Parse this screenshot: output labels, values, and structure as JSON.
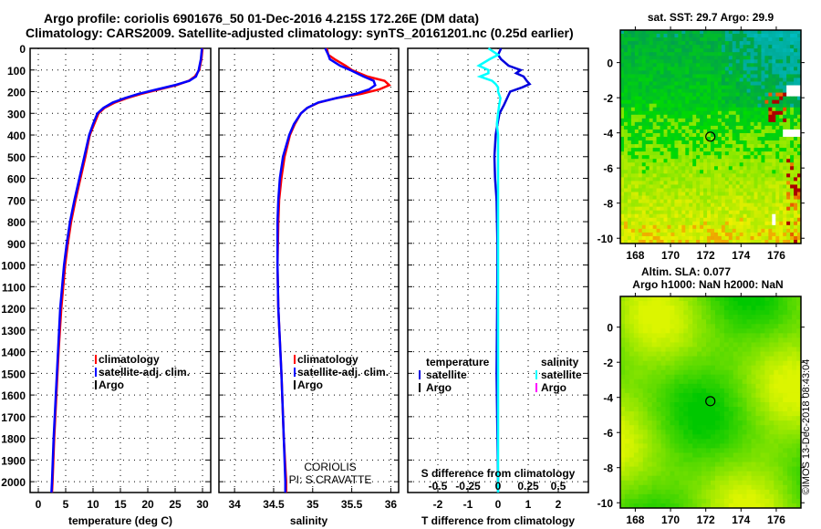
{
  "title_line1": "Argo profile: coriolis 6901676_50 01-Dec-2016 4.215S 172.26E (DM data)",
  "title_line2": "Climatology: CARS2009. Satellite-adjusted climatology: synTS_20161201.nc (0.25d earlier)",
  "copyright": "©IMOS 13-Dec-2018 08:43:04",
  "colors": {
    "climatology": "#ff0000",
    "satellite": "#0000ff",
    "argo": "#000000",
    "sat_t_diff": "#0000dd",
    "sat_s_diff": "#00ffff",
    "argo_s_diff": "#ff00ff"
  },
  "chart_data": [
    {
      "type": "line",
      "name": "temperature-profile",
      "xlabel": "temperature (deg C)",
      "ylabel": "",
      "xlim": [
        -1.5,
        31.5
      ],
      "ylim": [
        2050,
        0
      ],
      "xticks": [
        0,
        5,
        10,
        15,
        20,
        25,
        30
      ],
      "yticks": [
        0,
        100,
        200,
        300,
        400,
        500,
        600,
        700,
        800,
        900,
        1000,
        1100,
        1200,
        1300,
        1400,
        1500,
        1600,
        1700,
        1800,
        1900,
        2000
      ],
      "grid": true,
      "legend": {
        "position": "lower-right",
        "entries": [
          "climatology",
          "satellite-adj. clim.",
          "Argo"
        ]
      },
      "depth": [
        0,
        50,
        100,
        130,
        150,
        170,
        190,
        210,
        230,
        250,
        275,
        300,
        350,
        400,
        500,
        600,
        700,
        800,
        900,
        1000,
        1200,
        1400,
        1600,
        1800,
        2000,
        2050
      ],
      "series": [
        {
          "name": "climatology",
          "values": [
            30.0,
            29.8,
            29.4,
            28.6,
            27.5,
            25.2,
            22.0,
            18.8,
            16.2,
            14.0,
            12.1,
            11.0,
            10.2,
            9.4,
            8.6,
            7.7,
            6.8,
            6.0,
            5.4,
            4.9,
            4.2,
            3.7,
            3.3,
            2.9,
            2.6,
            2.5
          ]
        },
        {
          "name": "satellite-adj. clim.",
          "values": [
            29.9,
            29.7,
            29.3,
            28.8,
            27.6,
            24.9,
            21.6,
            18.3,
            15.8,
            13.6,
            11.9,
            10.8,
            10.0,
            9.3,
            8.4,
            7.5,
            6.6,
            5.8,
            5.2,
            4.7,
            4.0,
            3.6,
            3.2,
            2.8,
            2.5,
            2.4
          ]
        }
      ]
    },
    {
      "type": "line",
      "name": "salinity-profile",
      "xlabel": "salinity",
      "xlim": [
        33.8,
        36.1
      ],
      "ylim": [
        2050,
        0
      ],
      "xticks": [
        34,
        34.5,
        35,
        35.5,
        36
      ],
      "grid": true,
      "legend": {
        "position": "lower-right",
        "entries": [
          "climatology",
          "satellite-adj. clim.",
          "Argo"
        ]
      },
      "annotation": [
        "CORIOLIS",
        "PI: S.CRAVATTE"
      ],
      "depth": [
        0,
        30,
        50,
        80,
        100,
        130,
        150,
        170,
        190,
        210,
        230,
        250,
        275,
        300,
        350,
        400,
        500,
        600,
        700,
        800,
        1000,
        1200,
        1500,
        1800,
        2000,
        2050
      ],
      "series": [
        {
          "name": "climatology",
          "values": [
            35.18,
            35.2,
            35.28,
            35.42,
            35.5,
            35.7,
            35.92,
            35.98,
            35.85,
            35.62,
            35.3,
            35.08,
            34.93,
            34.85,
            34.77,
            34.71,
            34.64,
            34.6,
            34.57,
            34.56,
            34.55,
            34.56,
            34.6,
            34.63,
            34.66,
            34.66
          ]
        },
        {
          "name": "satellite-adj. clim.",
          "values": [
            35.16,
            35.2,
            35.22,
            35.35,
            35.48,
            35.65,
            35.78,
            35.8,
            35.72,
            35.55,
            35.3,
            35.07,
            34.93,
            34.85,
            34.76,
            34.7,
            34.62,
            34.58,
            34.56,
            34.55,
            34.55,
            34.56,
            34.6,
            34.63,
            34.65,
            34.65
          ]
        }
      ]
    },
    {
      "type": "line",
      "name": "difference-profile",
      "xlabel": "T difference from climatology",
      "xlabel2": "S difference from climatology",
      "xlim": [
        -3,
        3
      ],
      "xlim2": [
        -0.75,
        0.75
      ],
      "ylim": [
        2050,
        0
      ],
      "xticks": [
        -2,
        -1,
        0,
        1,
        2
      ],
      "xticks2": [
        "-0.5",
        "-0.25",
        "0",
        "0.25",
        "0.5"
      ],
      "xticks2_values": [
        -0.5,
        -0.25,
        0,
        0.25,
        0.5
      ],
      "grid": true,
      "legend": {
        "position": "lower",
        "temperature_title": "temperature",
        "salinity_title": "salinity",
        "entries": [
          "satellite",
          "Argo"
        ]
      },
      "depth": [
        0,
        30,
        50,
        80,
        100,
        115,
        130,
        150,
        165,
        180,
        200,
        230,
        260,
        300,
        350,
        400,
        500,
        600,
        700,
        900,
        1000,
        1200,
        1500,
        2000,
        2050
      ],
      "series": [
        {
          "name": "T satellite",
          "axis": "T",
          "values": [
            0.1,
            0.0,
            0.1,
            0.35,
            0.75,
            0.6,
            0.85,
            0.95,
            1.05,
            0.8,
            0.4,
            0.3,
            0.2,
            0.05,
            -0.02,
            -0.08,
            -0.12,
            -0.1,
            -0.05,
            -0.02,
            -0.02,
            -0.03,
            -0.05,
            0.0,
            0.0
          ]
        },
        {
          "name": "S satellite",
          "axis": "S",
          "values": [
            -0.08,
            0.0,
            -0.07,
            -0.16,
            -0.08,
            -0.08,
            -0.15,
            -0.05,
            -0.02,
            0.0,
            0.0,
            0.02,
            0.01,
            0.0,
            -0.01,
            0.0,
            0.0,
            0.0,
            0.0,
            0.0,
            0.0,
            0.0,
            0.0,
            0.0,
            0.0
          ]
        }
      ]
    },
    {
      "type": "heatmap",
      "name": "sst-map",
      "title": "sat. SST: 29.7 Argo: 29.9",
      "xlim": [
        167.15,
        177.4
      ],
      "ylim": [
        -10.3,
        1.85
      ],
      "xticks": [
        168,
        170,
        172,
        174,
        176
      ],
      "yticks": [
        0,
        -2,
        -4,
        -6,
        -8,
        -10
      ],
      "marker": {
        "lon": 172.26,
        "lat": -4.215
      }
    },
    {
      "type": "heatmap",
      "name": "sla-map",
      "title": "Altim. SLA: 0.077",
      "subtitle": "Argo h1000: NaN h2000: NaN",
      "xlim": [
        167.15,
        177.4
      ],
      "ylim": [
        -10.3,
        1.75
      ],
      "xticks": [
        168,
        170,
        172,
        174,
        176
      ],
      "yticks": [
        0,
        -2,
        -4,
        -6,
        -8,
        -10
      ],
      "marker": {
        "lon": 172.26,
        "lat": -4.215
      }
    }
  ]
}
